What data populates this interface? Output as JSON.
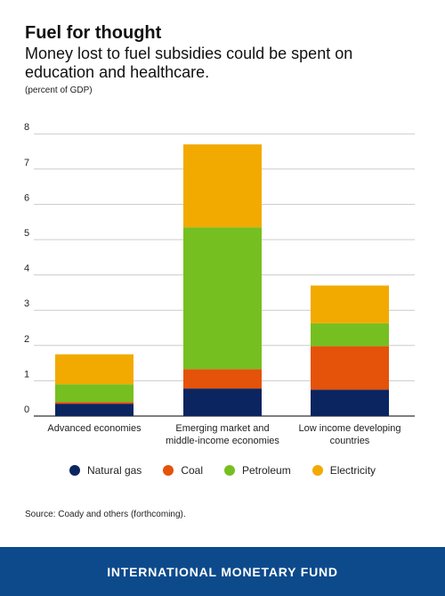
{
  "colors": {
    "background": "#ffffff",
    "footer_bg": "#0d4a8c",
    "grid": "#cccccc",
    "axis": "#333333"
  },
  "header": {
    "title": "Fuel for thought",
    "subtitle": "Money lost to fuel subsidies could be spent on education and healthcare.",
    "unit": "(percent of GDP)"
  },
  "source": "Source: Coady and others (forthcoming).",
  "footer": {
    "org_name": "INTERNATIONAL MONETARY FUND"
  },
  "chart_data": {
    "type": "bar",
    "stacked": true,
    "title": "Fuel for thought",
    "subtitle": "Money lost to fuel subsidies could be spent on education and healthcare.",
    "ylabel": "(percent of GDP)",
    "xlabel": "",
    "ylim": [
      0,
      8
    ],
    "yticks": [
      0,
      1,
      2,
      3,
      4,
      5,
      6,
      7,
      8
    ],
    "grid": true,
    "legend_position": "bottom",
    "categories": [
      [
        "Advanced economies"
      ],
      [
        "Emerging market and",
        "middle-income economies"
      ],
      [
        "Low income developing",
        "countries"
      ]
    ],
    "series": [
      {
        "name": "Natural gas",
        "color": "#0b2560",
        "values": [
          0.35,
          0.78,
          0.75
        ]
      },
      {
        "name": "Coal",
        "color": "#e5520a",
        "values": [
          0.05,
          0.55,
          1.23
        ]
      },
      {
        "name": "Petroleum",
        "color": "#76bf21",
        "values": [
          0.5,
          4.02,
          0.65
        ]
      },
      {
        "name": "Electricity",
        "color": "#f2aa00",
        "values": [
          0.85,
          2.35,
          1.07
        ]
      }
    ]
  }
}
